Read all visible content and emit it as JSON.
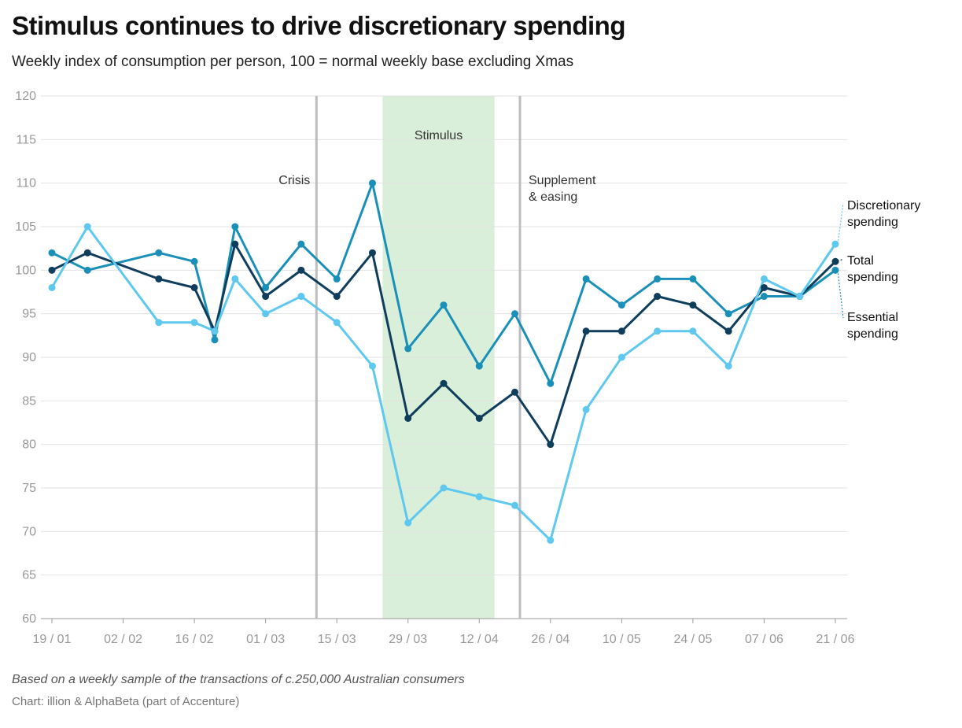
{
  "header": {
    "title": "Stimulus continues to drive discretionary spending",
    "subtitle": "Weekly index of consumption per person, 100 = normal weekly base excluding Xmas"
  },
  "footer": {
    "note": "Based on a weekly sample of the transactions of c.250,000 Australian consumers",
    "source": "Chart: illion & AlphaBeta (part of Accenture)"
  },
  "chart_data": {
    "type": "line",
    "title": "Stimulus continues to drive discretionary spending",
    "subtitle": "Weekly index of consumption per person, 100 = normal weekly base excluding Xmas",
    "ylim": [
      60,
      120
    ],
    "y_ticks": [
      60,
      65,
      70,
      75,
      80,
      85,
      90,
      95,
      100,
      105,
      110,
      115,
      120
    ],
    "x_ticks": [
      "19 / 01",
      "02 / 02",
      "16 / 02",
      "01 / 03",
      "15 / 03",
      "29 / 03",
      "12 / 04",
      "26 / 04",
      "10 / 05",
      "24 / 05",
      "07 / 06",
      "21 / 06"
    ],
    "x_range": [
      "2020-01-19",
      "2020-06-21"
    ],
    "x": [
      "2020-01-19",
      "2020-01-26",
      "2020-02-09",
      "2020-02-16",
      "2020-02-20",
      "2020-02-24",
      "2020-03-01",
      "2020-03-08",
      "2020-03-15",
      "2020-03-22",
      "2020-03-29",
      "2020-04-05",
      "2020-04-12",
      "2020-04-19",
      "2020-04-26",
      "2020-05-03",
      "2020-05-10",
      "2020-05-17",
      "2020-05-24",
      "2020-05-31",
      "2020-06-07",
      "2020-06-14",
      "2020-06-21"
    ],
    "series": [
      {
        "name": "Essential spending",
        "label_lines": [
          "Essential",
          "spending"
        ],
        "color": "#1a8fb8",
        "values": [
          102,
          100,
          102,
          101,
          92,
          105,
          98,
          103,
          99,
          110,
          91,
          96,
          89,
          95,
          87,
          99,
          96,
          99,
          99,
          95,
          97,
          97,
          100
        ]
      },
      {
        "name": "Total spending",
        "label_lines": [
          "Total",
          "spending"
        ],
        "color": "#0f3d5c",
        "values": [
          100,
          102,
          99,
          98,
          93,
          103,
          97,
          100,
          97,
          102,
          83,
          87,
          83,
          86,
          80,
          93,
          93,
          97,
          96,
          93,
          98,
          97,
          101
        ]
      },
      {
        "name": "Discretionary spending",
        "label_lines": [
          "Discretionary",
          "spending"
        ],
        "color": "#5ec8ef",
        "values": [
          98,
          105,
          94,
          94,
          93,
          99,
          95,
          97,
          94,
          89,
          71,
          75,
          74,
          73,
          69,
          84,
          90,
          93,
          93,
          89,
          99,
          97,
          103
        ]
      }
    ],
    "shaded_periods": [
      {
        "label": "Stimulus",
        "from": "2020-03-24",
        "to": "2020-04-15",
        "color": "#d9efd9"
      }
    ],
    "vertical_markers": [
      {
        "label_lines": [
          "Crisis"
        ],
        "date": "2020-03-11"
      },
      {
        "label_lines": [
          "Supplement",
          "& easing"
        ],
        "date": "2020-04-20"
      }
    ],
    "grid": true
  }
}
